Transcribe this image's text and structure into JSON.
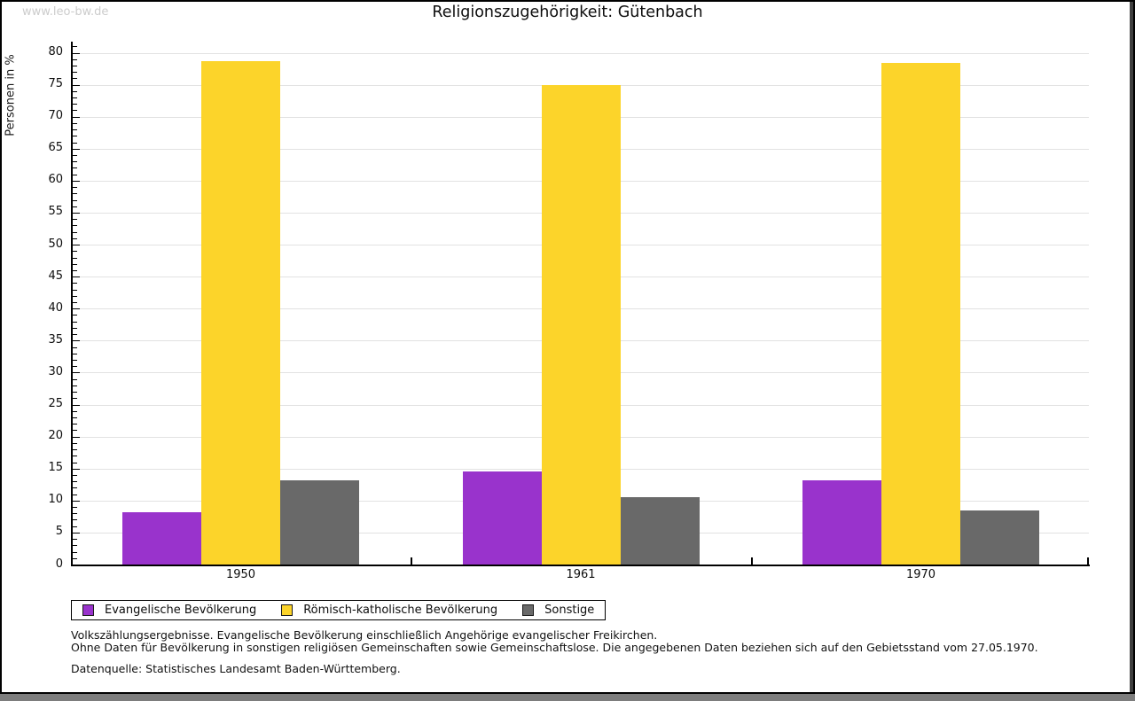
{
  "watermark": "www.leo-bw.de",
  "title": "Religionszugehörigkeit: Gütenbach",
  "chart_data": {
    "type": "bar",
    "title": "Religionszugehörigkeit: Gütenbach",
    "categories": [
      "1950",
      "1961",
      "1970"
    ],
    "series": [
      {
        "name": "Evangelische Bevölkerung",
        "color": "#9933cc",
        "values": [
          8.2,
          14.5,
          13.2
        ]
      },
      {
        "name": "Römisch-katholische Bevölkerung",
        "color": "#fcd42a",
        "values": [
          78.7,
          75.0,
          78.4
        ]
      },
      {
        "name": "Sonstige",
        "color": "#696969",
        "values": [
          13.1,
          10.5,
          8.4
        ]
      }
    ],
    "xlabel": "",
    "ylabel": "Personen in %",
    "ylim": [
      0,
      80
    ],
    "yticks": [
      0,
      5,
      10,
      15,
      20,
      25,
      30,
      35,
      40,
      45,
      50,
      55,
      60,
      65,
      70,
      75,
      80
    ],
    "minor_tick_step": 1,
    "grid": "horizontal",
    "legend_position": "bottom-left"
  },
  "footnotes": [
    "Volkszählungsergebnisse. Evangelische Bevölkerung einschließlich Angehörige evangelischer Freikirchen.",
    "Ohne Daten für Bevölkerung in sonstigen religiösen Gemeinschaften sowie Gemeinschaftslose. Die angegebenen Daten beziehen sich auf den Gebietsstand vom 27.05.1970.",
    "Datenquelle: Statistisches Landesamt Baden-Württemberg."
  ],
  "colors": {
    "grid": "#e2e2e2",
    "axis": "#000000",
    "watermark": "#cccccc",
    "right_strip": "#3f3f3f",
    "bottom_strip": "#7d7d7d"
  }
}
